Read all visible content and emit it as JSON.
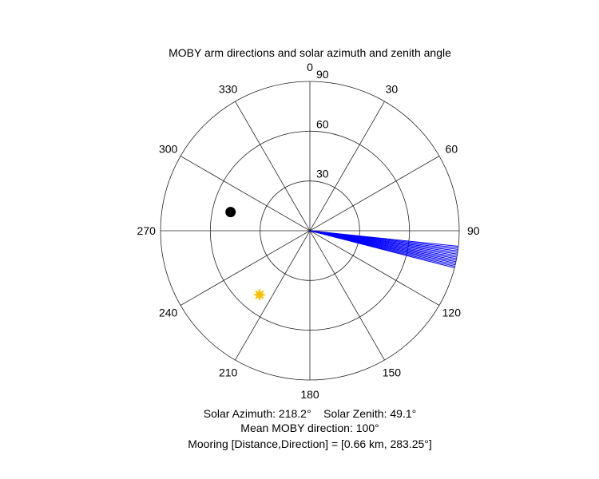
{
  "chart_data": {
    "type": "polar",
    "title": "MOBY arm directions and solar azimuth and zenith angle",
    "angular_axis": {
      "direction": "clockwise",
      "zero": "top",
      "ticks": [
        0,
        30,
        60,
        90,
        120,
        150,
        180,
        210,
        240,
        270,
        300,
        330
      ],
      "tick_labels": [
        "0",
        "30",
        "60",
        "90",
        "120",
        "150",
        "180",
        "210",
        "240",
        "270",
        "300",
        "330"
      ]
    },
    "radial_axis": {
      "range": [
        0,
        90
      ],
      "ticks": [
        30,
        60,
        90
      ],
      "tick_labels": [
        "30",
        "60",
        "90"
      ],
      "label_angle": 0
    },
    "grid": true,
    "arm_lines": {
      "color": "#0000ff",
      "radius": 90,
      "angles": [
        96.0,
        96.6,
        97.2,
        97.8,
        98.4,
        99.0,
        99.6,
        100.2,
        100.8,
        101.4,
        102.0,
        102.6,
        103.2,
        103.8,
        104.4
      ]
    },
    "mooring_point": {
      "azimuth": 283.25,
      "zenith": 49.1,
      "color": "#000000"
    },
    "sun_point": {
      "azimuth": 218.2,
      "zenith": 49.1,
      "color": "#ffc000"
    },
    "captions": [
      "Solar Azimuth: 218.2°    Solar Zenith: 49.1°",
      "Mean MOBY direction: 100°",
      "Mooring [Distance,Direction] = [0.66 km, 283.25°]"
    ]
  }
}
